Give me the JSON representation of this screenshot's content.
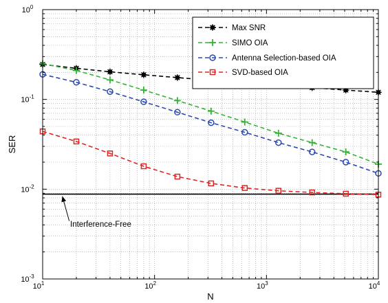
{
  "chart_data": {
    "type": "line",
    "xscale": "log",
    "yscale": "log",
    "xlim": [
      10,
      10000
    ],
    "ylim": [
      0.001,
      1
    ],
    "xlabel": "N",
    "ylabel": "SER",
    "grid": true,
    "legend_position": "top-right",
    "x": [
      10,
      20,
      40,
      80,
      160,
      320,
      640,
      1280,
      2560,
      5120,
      10000
    ],
    "xticks": [
      {
        "value": 10,
        "base": "10",
        "exp": "1"
      },
      {
        "value": 100,
        "base": "10",
        "exp": "2"
      },
      {
        "value": 1000,
        "base": "10",
        "exp": "3"
      },
      {
        "value": 10000,
        "base": "10",
        "exp": "4"
      }
    ],
    "yticks": [
      {
        "value": 0.001,
        "base": "10",
        "exp": "-3"
      },
      {
        "value": 0.01,
        "base": "10",
        "exp": "-2"
      },
      {
        "value": 0.1,
        "base": "10",
        "exp": "-1"
      },
      {
        "value": 1,
        "base": "10",
        "exp": "0"
      }
    ],
    "series": [
      {
        "name": "Max SNR",
        "color": "#000000",
        "marker": "asterisk",
        "values": [
          0.245,
          0.222,
          0.203,
          0.188,
          0.175,
          0.163,
          0.153,
          0.144,
          0.135,
          0.127,
          0.12
        ]
      },
      {
        "name": "SIMO OIA",
        "color": "#33b333",
        "marker": "plus",
        "values": [
          0.25,
          0.21,
          0.165,
          0.127,
          0.097,
          0.074,
          0.056,
          0.042,
          0.033,
          0.026,
          0.019
        ]
      },
      {
        "name": "Antenna Selection-based OIA",
        "color": "#2948b0",
        "marker": "circle",
        "values": [
          0.19,
          0.155,
          0.122,
          0.094,
          0.072,
          0.055,
          0.043,
          0.033,
          0.026,
          0.02,
          0.015
        ]
      },
      {
        "name": "SVD-based OIA",
        "color": "#e02424",
        "marker": "square",
        "values": [
          0.044,
          0.034,
          0.025,
          0.018,
          0.0138,
          0.0116,
          0.0103,
          0.0096,
          0.0092,
          0.0089,
          0.0087
        ]
      }
    ],
    "reference_line": {
      "label": "Interference-Free",
      "value": 0.0088,
      "color": "#000000"
    },
    "annotation": {
      "text": "Interference-Free",
      "arrow_target_x": 15,
      "arrow_target_y": 0.0088
    }
  }
}
